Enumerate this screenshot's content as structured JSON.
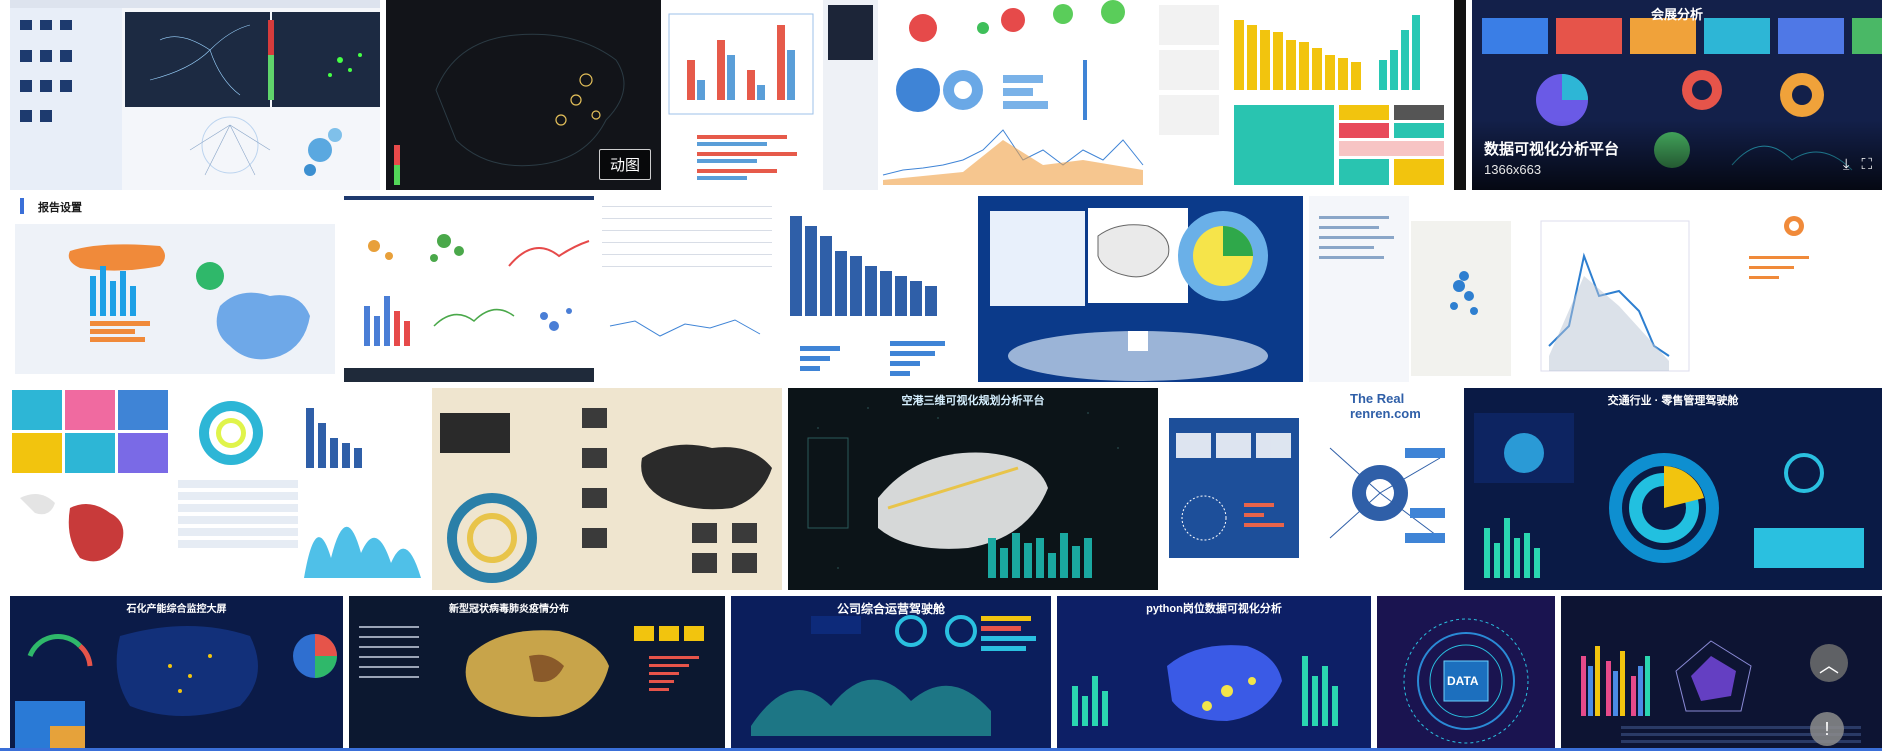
{
  "tiles": {
    "t2": {
      "badge": "动图"
    },
    "t7": {
      "title": "会展分析",
      "hover_title": "数据可视化分析平台",
      "hover_size": "1366x663"
    },
    "t8": {
      "label": "报告设置"
    },
    "t17": {
      "title": "空港三维可视化规划分析平台"
    },
    "t19": {
      "title": "The Real renren.com"
    },
    "t20": {
      "title": "交通行业 · 零售管理驾驶舱"
    },
    "t21": {
      "title": "石化产能综合监控大屏"
    },
    "t22": {
      "title": "新型冠状病毒肺炎疫情分布"
    },
    "t23": {
      "title": "公司综合运营驾驶舱"
    },
    "t24": {
      "title": "python岗位数据可视化分析"
    },
    "t25": {
      "title": "DATA"
    }
  },
  "icons": {
    "download": "download-icon",
    "fullscreen": "fullscreen-icon",
    "back_to_top": "chevron-up-icon",
    "feedback": "exclamation-icon"
  },
  "colors": {
    "accent": "#3a6fd8"
  }
}
